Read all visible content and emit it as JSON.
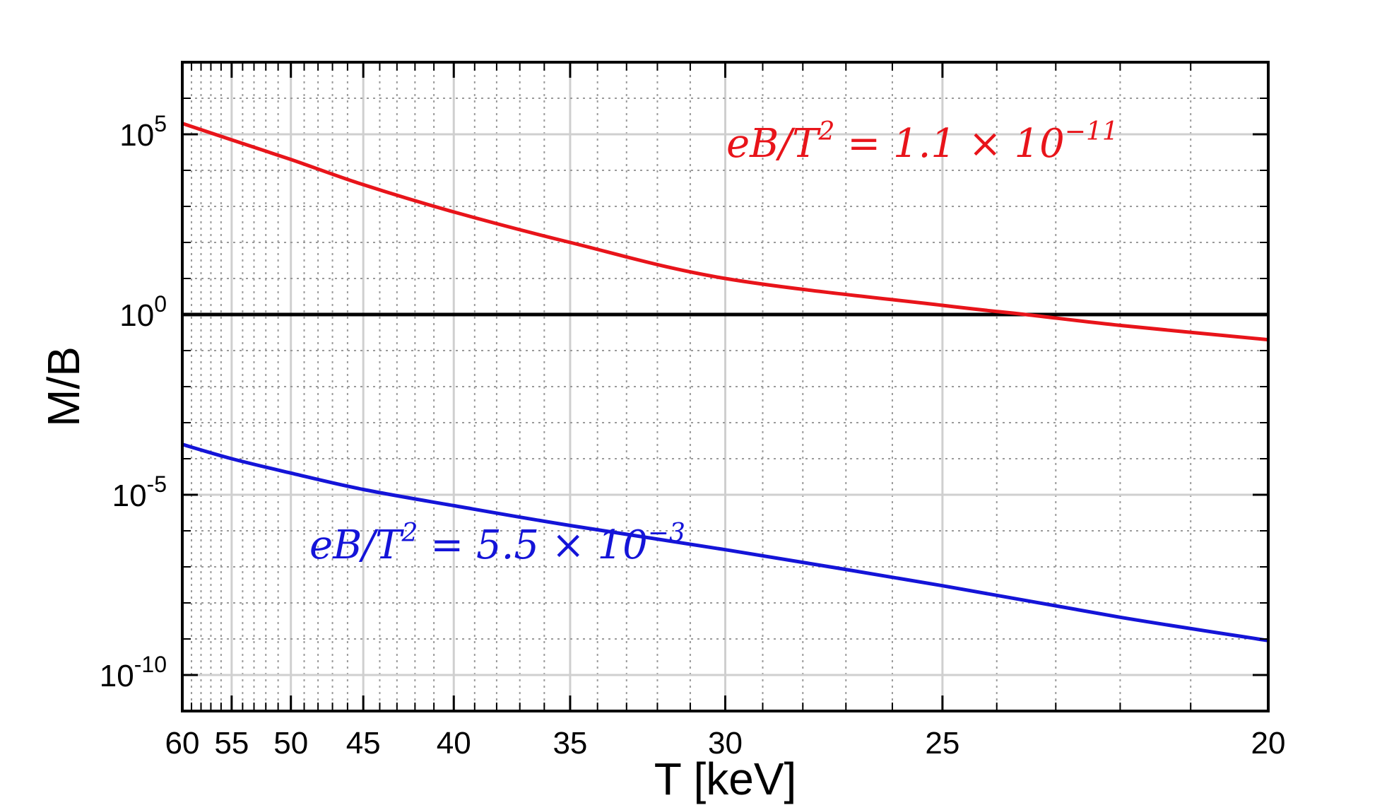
{
  "chart_data": {
    "type": "line",
    "title": "",
    "xlabel": "T [keV]",
    "ylabel": "M/B",
    "x_scale": "reciprocal",
    "x_reversed": true,
    "xlim": [
      60,
      20
    ],
    "y_scale": "log",
    "ylim": [
      1e-11,
      10000000.0
    ],
    "grid": true,
    "x_major_ticks": [
      60,
      55,
      50,
      45,
      40,
      35,
      30,
      25,
      20
    ],
    "x_tick_labels": [
      "60",
      "55",
      "50",
      "45",
      "40",
      "35",
      "30",
      "25",
      "20"
    ],
    "y_major_ticks": [
      {
        "value": 100000.0,
        "base": "10",
        "exp": "5"
      },
      {
        "value": 1.0,
        "base": "10",
        "exp": "0"
      },
      {
        "value": 1e-05,
        "base": "10",
        "exp": "-5"
      },
      {
        "value": 1e-10,
        "base": "10",
        "exp": "-10"
      }
    ],
    "reference_lines": [
      {
        "y": 1,
        "color": "#000000"
      }
    ],
    "series": [
      {
        "color": "#e8141a",
        "x": [
          60,
          55,
          50,
          45,
          40,
          35,
          30,
          25,
          23.5,
          22,
          20
        ],
        "y": [
          200000,
          70000,
          20000,
          4000,
          700,
          100,
          10,
          1.8,
          1.0,
          0.5,
          0.2
        ]
      },
      {
        "color": "#1414d8",
        "x": [
          60,
          55,
          50,
          45,
          40,
          35,
          30,
          25,
          22,
          20
        ],
        "y": [
          0.00025,
          0.0001,
          4e-05,
          1.4e-05,
          5e-06,
          1.4e-06,
          3e-07,
          3e-08,
          4e-09,
          9e-10
        ]
      }
    ],
    "annotations": [
      {
        "text_before": "eB/T",
        "sup1": "2",
        "text_mid": " = 1.1 × 10",
        "sup2": "−11",
        "color": "#e8141a"
      },
      {
        "text_before": "eB/T",
        "sup1": "2",
        "text_mid": " = 5.5 × 10",
        "sup2": "−3",
        "color": "#1414d8"
      }
    ]
  }
}
